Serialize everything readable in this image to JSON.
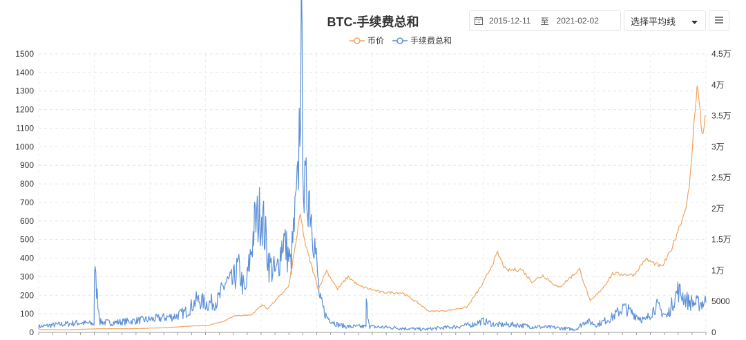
{
  "header": {
    "title": "BTC-手续费总和",
    "date_start": "2015-12-11",
    "date_sep": "至",
    "date_end": "2021-02-02",
    "ma_select_label": "选择平均线"
  },
  "legend": [
    {
      "label": "币价",
      "color": "#f0a35e"
    },
    {
      "label": "手续费总和",
      "color": "#5b8fd6"
    }
  ],
  "chart_data": {
    "type": "line",
    "title": "BTC-手续费总和",
    "x_range": [
      "2015-12-11",
      "2021-02-02"
    ],
    "y_left": {
      "min": 0,
      "max": 1500,
      "ticks": [
        "0",
        "100",
        "200",
        "300",
        "400",
        "500",
        "600",
        "700",
        "800",
        "900",
        "1000",
        "1100",
        "1200",
        "1300",
        "1400",
        "1500"
      ]
    },
    "y_right": {
      "min": 0,
      "max": 45000,
      "ticks": [
        "0",
        "5000",
        "1万",
        "1.5万",
        "2万",
        "2.5万",
        "3万",
        "3.5万",
        "4万",
        "4.5万"
      ]
    },
    "grid": true,
    "legend_position": "top-center",
    "series": [
      {
        "name": "手续费总和",
        "axis": "left",
        "color": "#5b8fd6",
        "x": [
          "2015-12-11",
          "2016-02-01",
          "2016-04-01",
          "2016-05-15",
          "2016-05-16",
          "2016-06-01",
          "2016-07-01",
          "2016-09-01",
          "2016-11-01",
          "2017-01-01",
          "2017-02-01",
          "2017-03-01",
          "2017-04-01",
          "2017-05-01",
          "2017-05-20",
          "2017-06-10",
          "2017-06-25",
          "2017-07-15",
          "2017-08-10",
          "2017-08-30",
          "2017-09-20",
          "2017-10-10",
          "2017-10-30",
          "2017-11-20",
          "2017-12-10",
          "2017-12-20",
          "2017-12-28",
          "2018-01-10",
          "2018-01-25",
          "2018-02-10",
          "2018-03-01",
          "2018-04-01",
          "2018-05-01",
          "2018-06-01",
          "2018-06-20",
          "2018-06-21",
          "2018-07-01",
          "2018-09-01",
          "2018-12-01",
          "2019-03-01",
          "2019-04-15",
          "2019-05-15",
          "2019-06-20",
          "2019-07-15",
          "2019-08-15",
          "2019-10-01",
          "2019-12-01",
          "2020-02-01",
          "2020-03-01",
          "2020-04-01",
          "2020-05-15",
          "2020-06-15",
          "2020-08-15",
          "2020-09-15",
          "2020-10-15",
          "2020-11-15",
          "2020-12-15",
          "2021-01-10",
          "2021-02-02"
        ],
        "values": [
          30,
          40,
          50,
          45,
          330,
          55,
          50,
          60,
          70,
          85,
          110,
          170,
          150,
          170,
          260,
          260,
          340,
          200,
          560,
          640,
          360,
          300,
          500,
          350,
          750,
          1500,
          720,
          750,
          500,
          170,
          80,
          40,
          30,
          30,
          30,
          150,
          30,
          25,
          15,
          30,
          40,
          60,
          40,
          40,
          40,
          30,
          25,
          15,
          60,
          40,
          80,
          130,
          60,
          140,
          80,
          220,
          160,
          150,
          160
        ]
      },
      {
        "name": "币价",
        "axis": "right",
        "color": "#f0a35e",
        "x": [
          "2015-12-11",
          "2016-03-01",
          "2016-06-01",
          "2016-09-01",
          "2016-12-01",
          "2017-02-01",
          "2017-04-01",
          "2017-05-15",
          "2017-06-15",
          "2017-08-01",
          "2017-09-01",
          "2017-09-15",
          "2017-10-15",
          "2017-11-15",
          "2017-12-17",
          "2018-01-01",
          "2018-02-06",
          "2018-03-01",
          "2018-04-01",
          "2018-05-01",
          "2018-06-01",
          "2018-08-01",
          "2018-10-01",
          "2018-11-20",
          "2018-12-15",
          "2019-02-01",
          "2019-04-01",
          "2019-05-15",
          "2019-06-26",
          "2019-07-20",
          "2019-09-01",
          "2019-10-01",
          "2019-11-01",
          "2019-12-15",
          "2020-02-12",
          "2020-03-13",
          "2020-04-15",
          "2020-05-15",
          "2020-07-15",
          "2020-08-15",
          "2020-10-01",
          "2020-10-25",
          "2020-11-15",
          "2020-12-01",
          "2020-12-17",
          "2021-01-08",
          "2021-01-22",
          "2021-02-02"
        ],
        "values": [
          450,
          420,
          600,
          600,
          750,
          1000,
          1100,
          1800,
          2700,
          2800,
          4500,
          3800,
          5500,
          7500,
          19000,
          14000,
          7000,
          10000,
          7000,
          9000,
          7500,
          6500,
          6400,
          4500,
          3400,
          3500,
          4100,
          7800,
          12800,
          10000,
          10200,
          8200,
          9200,
          7200,
          10200,
          5000,
          7000,
          9500,
          9300,
          11800,
          10600,
          13000,
          16500,
          18900,
          23000,
          40500,
          32000,
          35000
        ]
      }
    ]
  }
}
